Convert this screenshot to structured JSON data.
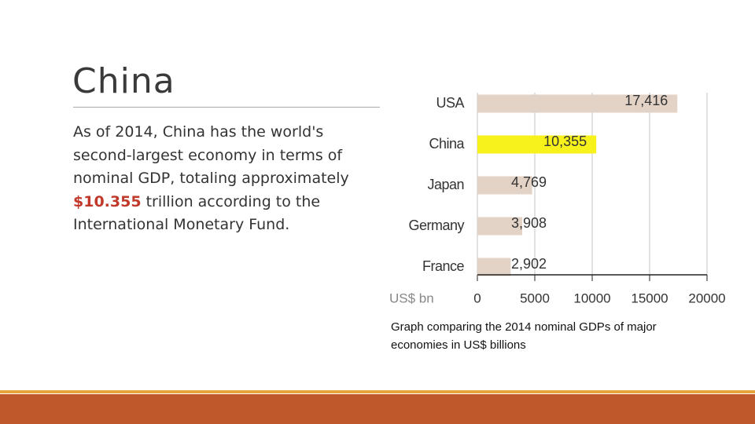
{
  "slide": {
    "title": "China",
    "body": [
      "As of 2014, China has the world's second-largest economy in terms of nominal GDP, totaling approximately ",
      "$10.355",
      " trillion according to the International Monetary Fund."
    ]
  },
  "chart_data": {
    "type": "hbar",
    "categories": [
      "USA",
      "China",
      "Japan",
      "Germany",
      "France"
    ],
    "values": [
      17416,
      10355,
      4769,
      3908,
      2902
    ],
    "value_labels": [
      "17,416",
      "10,355",
      "4,769",
      "3,908",
      "2,902"
    ],
    "colors": [
      "#e3d2c6",
      "#f7f21c",
      "#e3d2c6",
      "#e3d2c6",
      "#e3d2c6"
    ],
    "xlim": [
      0,
      20000
    ],
    "xticks": [
      0,
      5000,
      10000,
      15000,
      20000
    ],
    "xlabel": "US$ bn",
    "grid": true,
    "caption": "Graph comparing the 2014 nominal GDPs of major economies in US$ billions"
  }
}
